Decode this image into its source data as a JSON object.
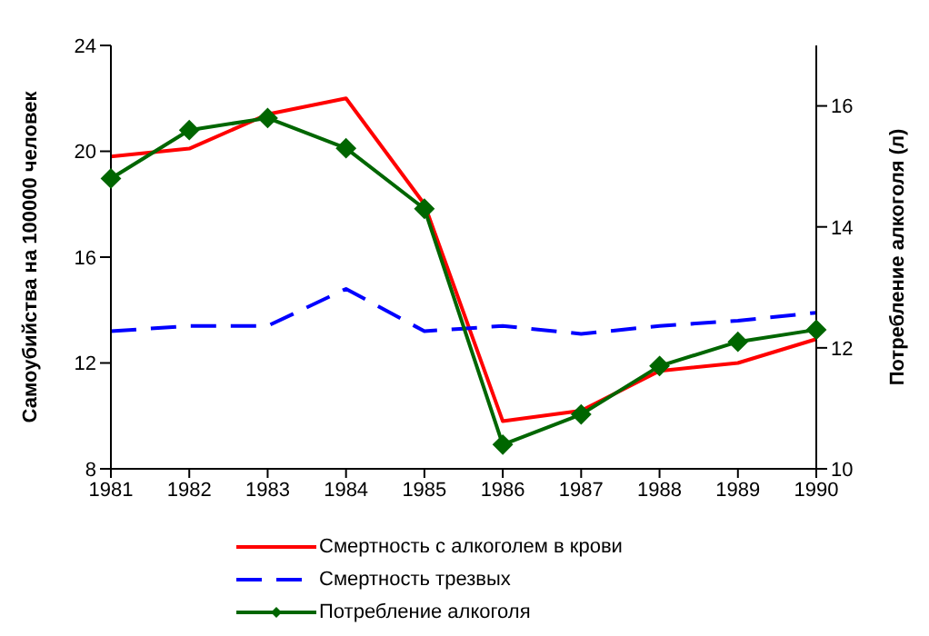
{
  "chart_data": {
    "type": "line",
    "categories": [
      "1981",
      "1982",
      "1983",
      "1984",
      "1985",
      "1986",
      "1987",
      "1988",
      "1989",
      "1990"
    ],
    "ylabel": "Самоубийства на 100000 человек",
    "y2label": "Потребление алкоголя (л)",
    "ylim": [
      8,
      24
    ],
    "yticks": [
      8,
      12,
      16,
      20,
      24
    ],
    "y2lim": [
      10,
      17
    ],
    "y2ticks": [
      10,
      12,
      14,
      16
    ],
    "grid": false,
    "legend": "bottom",
    "series": [
      {
        "name": "Смертность с алкоголем в крови",
        "color": "#ff0000",
        "line_style": "solid",
        "marker": "none",
        "values": [
          19.8,
          20.1,
          21.4,
          22.0,
          18.0,
          9.8,
          10.2,
          11.7,
          12.0,
          12.9
        ]
      },
      {
        "name": "Смертность трезвых",
        "color": "#0000ff",
        "line_style": "dashed",
        "marker": "none",
        "values": [
          13.2,
          13.4,
          13.4,
          14.8,
          13.2,
          13.4,
          13.1,
          13.4,
          13.6,
          13.9
        ]
      },
      {
        "name": "Потребление алкоголя",
        "color": "#006600",
        "line_style": "solid",
        "marker": "diamond",
        "axis": "y2",
        "values": [
          14.8,
          15.6,
          15.8,
          15.3,
          14.3,
          10.4,
          10.9,
          11.7,
          12.1,
          12.3
        ]
      }
    ]
  }
}
